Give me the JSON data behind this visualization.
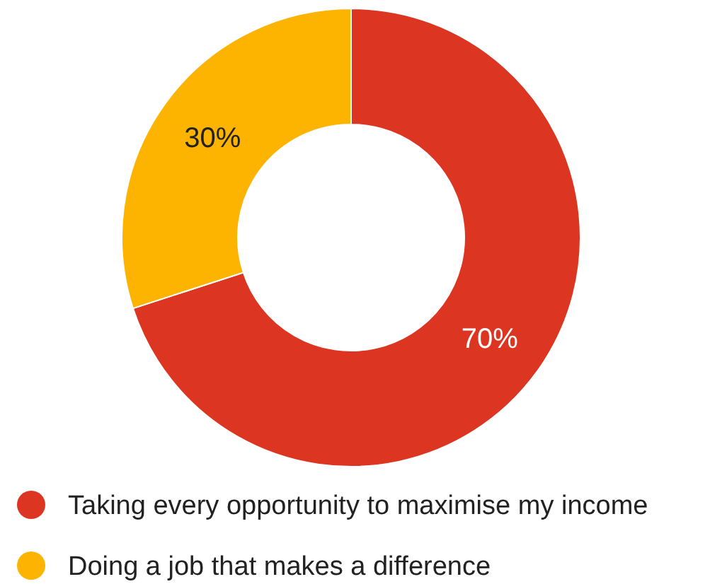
{
  "chart_data": {
    "type": "donut",
    "categories": [
      "Taking every opportunity to maximise my income",
      "Doing a job that makes a difference"
    ],
    "values": [
      70,
      30
    ],
    "colors": [
      "#dc3522",
      "#fcb400"
    ],
    "value_labels": [
      "70%",
      "30%"
    ],
    "legend": "bottom"
  }
}
